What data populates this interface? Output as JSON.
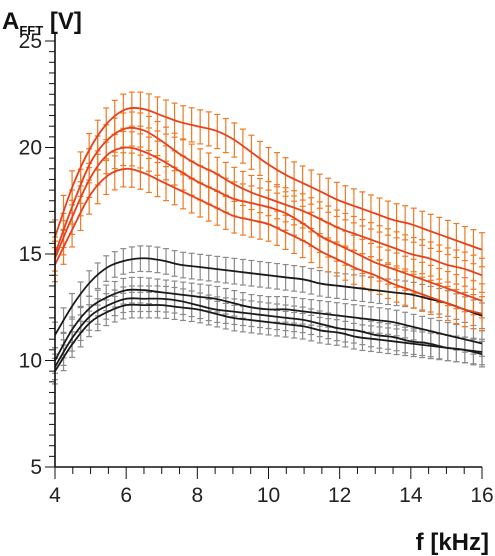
{
  "chart_data": {
    "type": "line",
    "ylabel_main": "A",
    "ylabel_sub": "FFT",
    "ylabel_unit": " [V]",
    "xlabel": "f [kHz]",
    "xlim": [
      4,
      16
    ],
    "ylim": [
      5,
      25
    ],
    "xticks": [
      4,
      6,
      8,
      10,
      12,
      14,
      16
    ],
    "yticks": [
      5,
      10,
      15,
      20,
      25
    ],
    "grid": false,
    "x": [
      4,
      4.5,
      5,
      5.5,
      6,
      6.5,
      7,
      7.5,
      8,
      8.5,
      9,
      9.5,
      10,
      10.5,
      11,
      11.5,
      12,
      12.5,
      13,
      13.5,
      14,
      14.5,
      15,
      15.5,
      16
    ],
    "series": [
      {
        "line_color": "#e8401c",
        "bar_color": "#f07a22",
        "err": 0.8,
        "values": [
          15.8,
          18.2,
          20.0,
          21.2,
          21.8,
          21.8,
          21.5,
          21.2,
          21.0,
          20.8,
          20.4,
          19.8,
          19.2,
          18.7,
          18.3,
          17.9,
          17.5,
          17.2,
          16.9,
          16.6,
          16.4,
          16.1,
          15.8,
          15.5,
          15.2
        ]
      },
      {
        "line_color": "#e8401c",
        "bar_color": "#f07a22",
        "err": 0.8,
        "values": [
          15.0,
          17.3,
          19.3,
          20.4,
          20.9,
          20.8,
          20.3,
          19.7,
          19.2,
          18.8,
          18.3,
          17.9,
          17.6,
          17.3,
          17.0,
          16.6,
          16.2,
          15.9,
          15.6,
          15.3,
          15.0,
          14.8,
          14.5,
          14.3,
          14.0
        ]
      },
      {
        "line_color": "#e8401c",
        "bar_color": "#f07a22",
        "err": 0.8,
        "values": [
          14.8,
          16.8,
          18.6,
          19.7,
          20.0,
          19.8,
          19.4,
          18.9,
          18.4,
          18.0,
          17.6,
          17.4,
          17.2,
          16.9,
          16.4,
          15.8,
          15.4,
          15.0,
          14.6,
          14.3,
          14.0,
          13.7,
          13.4,
          13.1,
          12.8
        ]
      },
      {
        "line_color": "#e8401c",
        "bar_color": "#f07a22",
        "err": 0.8,
        "values": [
          14.5,
          16.2,
          17.8,
          18.7,
          19.0,
          18.8,
          18.4,
          18.0,
          17.6,
          17.2,
          16.8,
          16.6,
          16.4,
          16.0,
          15.6,
          15.1,
          14.7,
          14.3,
          14.0,
          13.6,
          13.3,
          13.0,
          12.7,
          12.4,
          12.2
        ]
      },
      {
        "line_color": "#1a1a1a",
        "bar_color": "#8a8a8a",
        "err": 0.6,
        "values": [
          11.2,
          12.6,
          13.7,
          14.4,
          14.7,
          14.8,
          14.7,
          14.5,
          14.4,
          14.3,
          14.2,
          14.1,
          14.0,
          13.9,
          13.8,
          13.6,
          13.5,
          13.4,
          13.3,
          13.2,
          13.1,
          12.9,
          12.7,
          12.4,
          12.1
        ]
      },
      {
        "line_color": "#1a1a1a",
        "bar_color": "#8a8a8a",
        "err": 0.6,
        "values": [
          10.0,
          11.5,
          12.5,
          13.0,
          13.3,
          13.3,
          13.2,
          13.1,
          13.0,
          12.9,
          12.7,
          12.5,
          12.4,
          12.4,
          12.3,
          12.2,
          12.1,
          12.0,
          11.9,
          11.8,
          11.6,
          11.4,
          11.2,
          11.0,
          10.8
        ]
      },
      {
        "line_color": "#1a1a1a",
        "bar_color": "#8a8a8a",
        "err": 0.6,
        "values": [
          9.7,
          11.1,
          12.1,
          12.6,
          12.9,
          12.9,
          12.9,
          12.8,
          12.6,
          12.4,
          12.3,
          12.2,
          12.1,
          12.0,
          11.9,
          11.7,
          11.5,
          11.4,
          11.2,
          11.1,
          10.9,
          10.8,
          10.6,
          10.5,
          10.3
        ]
      },
      {
        "line_color": "#1a1a1a",
        "bar_color": "#8a8a8a",
        "err": 0.6,
        "values": [
          9.5,
          10.8,
          11.8,
          12.3,
          12.6,
          12.6,
          12.6,
          12.5,
          12.4,
          12.2,
          12.0,
          11.9,
          11.8,
          11.7,
          11.6,
          11.4,
          11.3,
          11.1,
          11.0,
          10.9,
          10.8,
          10.7,
          10.6,
          10.5,
          10.4
        ]
      }
    ]
  }
}
